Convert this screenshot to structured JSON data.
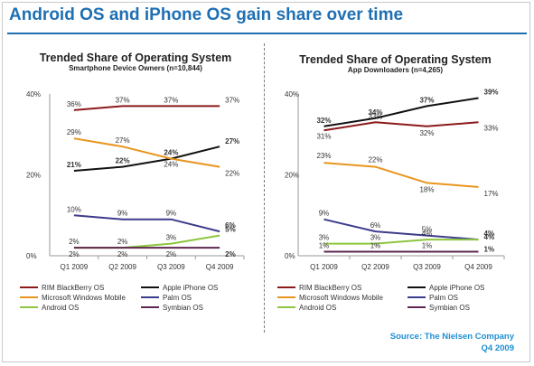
{
  "headline": "Android OS and iPhone OS gain share over time",
  "source": {
    "line1": "Source: The Nielsen Company",
    "line2": "Q4 2009"
  },
  "colors": {
    "headline": "#1f6fb3",
    "rim": "#8b1a1a",
    "iphone": "#111111",
    "windows_mobile": "#e8951e",
    "palm": "#3c3c8c",
    "android": "#8dc63f",
    "symbian": "#5e2750"
  },
  "chart_data": [
    {
      "type": "line",
      "title": "Trended Share of Operating System",
      "subtitle": "Smartphone Device Owners (n=10,844)",
      "categories": [
        "Q1 2009",
        "Q2 2009",
        "Q3 2009",
        "Q4 2009"
      ],
      "ylim": [
        0,
        40
      ],
      "yticks": [
        "0%",
        "20%",
        "40%"
      ],
      "grid": false,
      "legend_position": "bottom",
      "series": [
        {
          "name": "RIM BlackBerry OS",
          "color": "#8b1a1a",
          "values": [
            36,
            37,
            37,
            37
          ],
          "labels": [
            "36%",
            "37%",
            "37%",
            "37%"
          ]
        },
        {
          "name": "Apple iPhone OS",
          "color": "#111111",
          "values": [
            21,
            22,
            24,
            27
          ],
          "labels": [
            "21%",
            "22%",
            "24%",
            "27%"
          ]
        },
        {
          "name": "Microsoft Windows Mobile",
          "color": "#e8951e",
          "values": [
            29,
            27,
            24,
            22
          ],
          "labels": [
            "29%",
            "27%",
            "24%",
            "22%"
          ]
        },
        {
          "name": "Palm OS",
          "color": "#3c3c8c",
          "values": [
            10,
            9,
            9,
            6
          ],
          "labels": [
            "10%",
            "9%",
            "9%",
            "6%"
          ]
        },
        {
          "name": "Android OS",
          "color": "#8dc63f",
          "values": [
            2,
            2,
            3,
            5
          ],
          "labels": [
            "2%",
            "2%",
            "3%",
            "5%"
          ]
        },
        {
          "name": "Symbian OS",
          "color": "#5e2750",
          "values": [
            2,
            2,
            2,
            2
          ],
          "labels": [
            "2%",
            "2%",
            "2%",
            "2%"
          ]
        }
      ]
    },
    {
      "type": "line",
      "title": "Trended Share of Operating System",
      "subtitle": "App Downloaders (n=4,265)",
      "categories": [
        "Q1 2009",
        "Q2 2009",
        "Q3 2009",
        "Q4 2009"
      ],
      "ylim": [
        0,
        40
      ],
      "yticks": [
        "0%",
        "20%",
        "40%"
      ],
      "grid": false,
      "legend_position": "bottom",
      "series": [
        {
          "name": "RIM BlackBerry OS",
          "color": "#8b1a1a",
          "values": [
            31,
            33,
            32,
            33
          ],
          "labels": [
            "31%",
            "33%",
            "32%",
            "33%"
          ]
        },
        {
          "name": "Apple iPhone OS",
          "color": "#111111",
          "values": [
            32,
            34,
            37,
            39
          ],
          "labels": [
            "32%",
            "34%",
            "37%",
            "39%"
          ]
        },
        {
          "name": "Microsoft Windows Mobile",
          "color": "#e8951e",
          "values": [
            23,
            22,
            18,
            17
          ],
          "labels": [
            "23%",
            "22%",
            "18%",
            "17%"
          ]
        },
        {
          "name": "Palm OS",
          "color": "#3c3c8c",
          "values": [
            9,
            6,
            5,
            4
          ],
          "labels": [
            "9%",
            "6%",
            "5%",
            "4%"
          ]
        },
        {
          "name": "Android OS",
          "color": "#8dc63f",
          "values": [
            3,
            3,
            4,
            4
          ],
          "labels": [
            "3%",
            "3%",
            "4%",
            "4%"
          ]
        },
        {
          "name": "Symbian OS",
          "color": "#5e2750",
          "values": [
            1,
            1,
            1,
            1
          ],
          "labels": [
            "1%",
            "1%",
            "1%",
            "1%"
          ]
        }
      ]
    }
  ]
}
